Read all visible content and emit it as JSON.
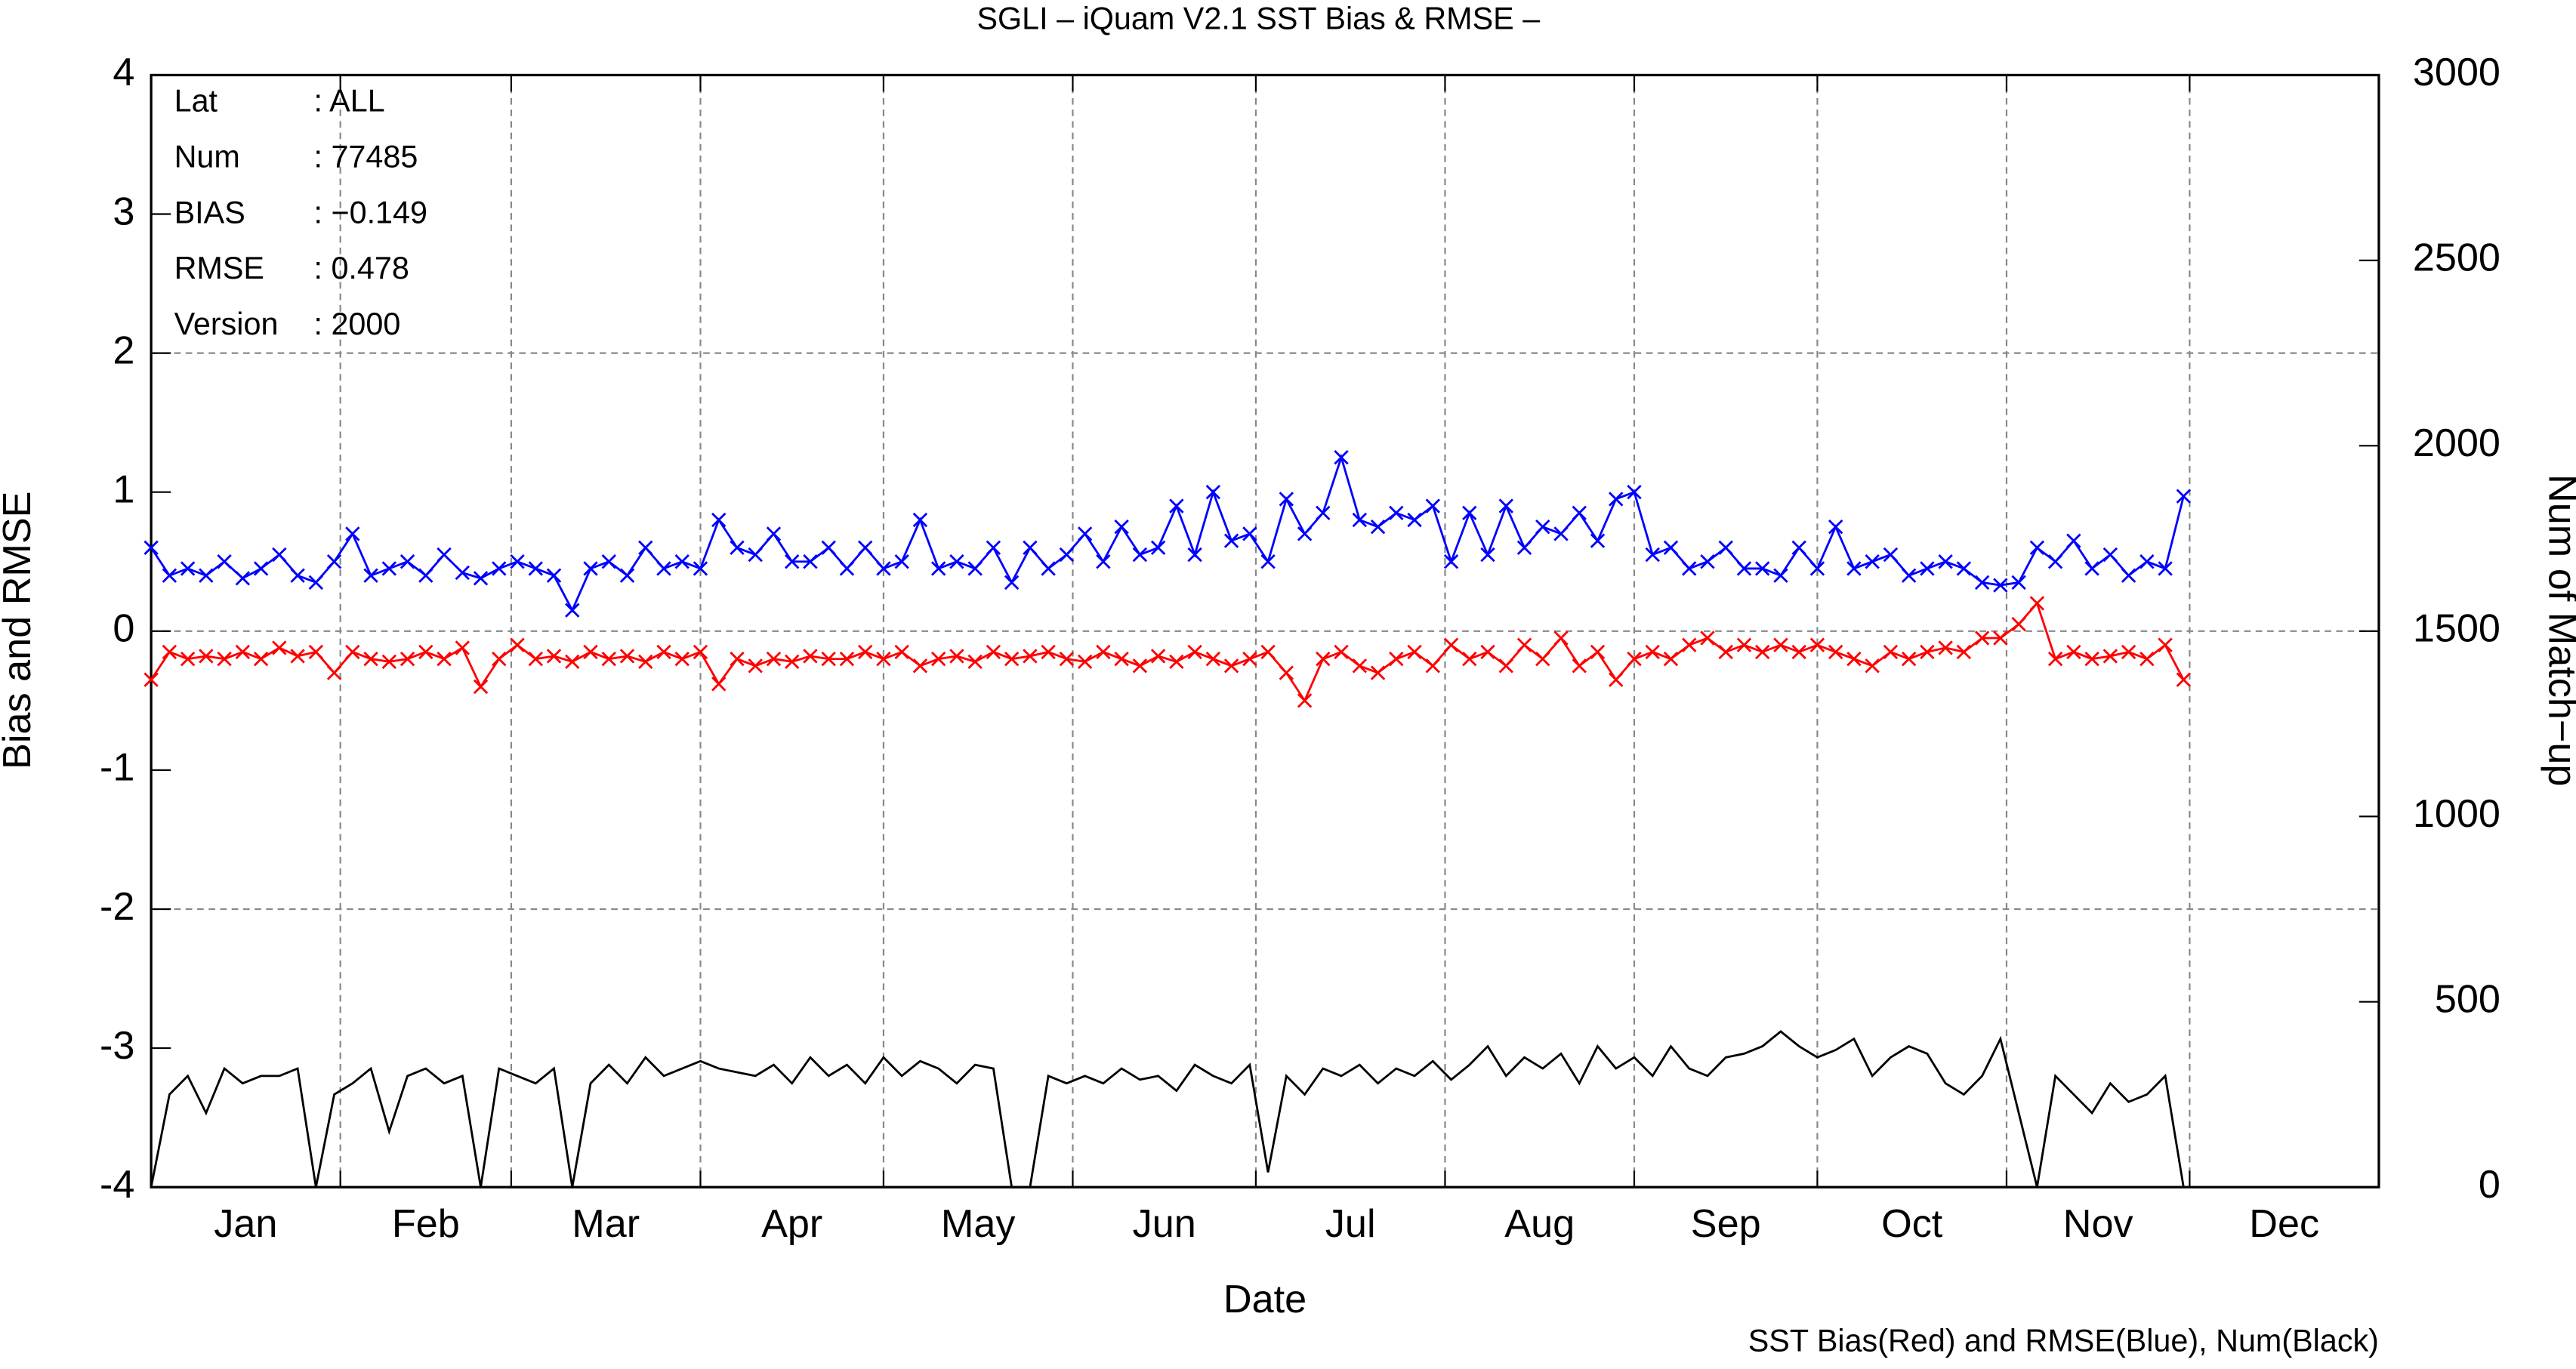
{
  "chart_data": {
    "type": "line",
    "title": "SGLI – iQuam V2.1 SST Bias & RMSE  –",
    "xlabel": "Date",
    "ylabel": "Bias and RMSE",
    "y2label": "Num of Match−up",
    "note": "SST Bias(Red) and RMSE(Blue), Num(Black)",
    "stats": [
      {
        "label": "Lat",
        "value": ": ALL"
      },
      {
        "label": "Num",
        "value": ": 77485"
      },
      {
        "label": "BIAS",
        "value": ": −0.149"
      },
      {
        "label": "RMSE",
        "value": ": 0.478"
      },
      {
        "label": "Version",
        "value": ": 2000"
      }
    ],
    "xlim": [
      0,
      365
    ],
    "xticks": [
      {
        "value": 15.5,
        "label": "Jan"
      },
      {
        "value": 45,
        "label": "Feb"
      },
      {
        "value": 74.5,
        "label": "Mar"
      },
      {
        "value": 105,
        "label": "Apr"
      },
      {
        "value": 135.5,
        "label": "May"
      },
      {
        "value": 166,
        "label": "Jun"
      },
      {
        "value": 196.5,
        "label": "Jul"
      },
      {
        "value": 227.5,
        "label": "Aug"
      },
      {
        "value": 258,
        "label": "Sep"
      },
      {
        "value": 288.5,
        "label": "Oct"
      },
      {
        "value": 319,
        "label": "Nov"
      },
      {
        "value": 349.5,
        "label": "Dec"
      }
    ],
    "xgrid": [
      31,
      59,
      90,
      120,
      151,
      181,
      212,
      243,
      273,
      304,
      334
    ],
    "ylim": [
      -4,
      4
    ],
    "yticks": [
      -4,
      -3,
      -2,
      -1,
      0,
      1,
      2,
      3,
      4
    ],
    "ygrid": [
      -2,
      0,
      2
    ],
    "y2lim": [
      0,
      3000
    ],
    "y2ticks": [
      0,
      500,
      1000,
      1500,
      2000,
      2500,
      3000
    ],
    "grid": true,
    "x": [
      0,
      3,
      6,
      9,
      12,
      15,
      18,
      21,
      24,
      27,
      30,
      33,
      36,
      39,
      42,
      45,
      48,
      51,
      54,
      57,
      60,
      63,
      66,
      69,
      72,
      75,
      78,
      81,
      84,
      87,
      90,
      93,
      96,
      99,
      102,
      105,
      108,
      111,
      114,
      117,
      120,
      123,
      126,
      129,
      132,
      135,
      138,
      141,
      144,
      147,
      150,
      153,
      156,
      159,
      162,
      165,
      168,
      171,
      174,
      177,
      180,
      183,
      186,
      189,
      192,
      195,
      198,
      201,
      204,
      207,
      210,
      213,
      216,
      219,
      222,
      225,
      228,
      231,
      234,
      237,
      240,
      243,
      246,
      249,
      252,
      255,
      258,
      261,
      264,
      267,
      270,
      273,
      276,
      279,
      282,
      285,
      288,
      291,
      294,
      297,
      300,
      303,
      306,
      309,
      312,
      315,
      318,
      321,
      324,
      327,
      330,
      333
    ],
    "series": [
      {
        "name": "RMSE",
        "color": "#0000ff",
        "marker": "x",
        "values": [
          0.6,
          0.4,
          0.45,
          0.4,
          0.5,
          0.38,
          0.45,
          0.55,
          0.4,
          0.35,
          0.5,
          0.7,
          0.4,
          0.45,
          0.5,
          0.4,
          0.55,
          0.42,
          0.38,
          0.45,
          0.5,
          0.45,
          0.4,
          0.15,
          0.45,
          0.5,
          0.4,
          0.6,
          0.45,
          0.5,
          0.45,
          0.8,
          0.6,
          0.55,
          0.7,
          0.5,
          0.5,
          0.6,
          0.45,
          0.6,
          0.45,
          0.5,
          0.8,
          0.45,
          0.5,
          0.45,
          0.6,
          0.35,
          0.6,
          0.45,
          0.55,
          0.7,
          0.5,
          0.75,
          0.55,
          0.6,
          0.9,
          0.55,
          1.0,
          0.65,
          0.7,
          0.5,
          0.95,
          0.7,
          0.85,
          1.25,
          0.8,
          0.75,
          0.85,
          0.8,
          0.9,
          0.5,
          0.85,
          0.55,
          0.9,
          0.6,
          0.75,
          0.7,
          0.85,
          0.65,
          0.95,
          1.0,
          0.55,
          0.6,
          0.45,
          0.5,
          0.6,
          0.45,
          0.45,
          0.4,
          0.6,
          0.45,
          0.75,
          0.45,
          0.5,
          0.55,
          0.4,
          0.45,
          0.5,
          0.45,
          0.35,
          0.33,
          0.35,
          0.6,
          0.5,
          0.65,
          0.45,
          0.55,
          0.4,
          0.5,
          0.45,
          0.97
        ]
      },
      {
        "name": "Bias",
        "color": "#ff0000",
        "marker": "x",
        "values": [
          -0.35,
          -0.15,
          -0.2,
          -0.18,
          -0.2,
          -0.15,
          -0.2,
          -0.12,
          -0.18,
          -0.15,
          -0.3,
          -0.15,
          -0.2,
          -0.22,
          -0.2,
          -0.15,
          -0.2,
          -0.12,
          -0.4,
          -0.2,
          -0.1,
          -0.2,
          -0.18,
          -0.22,
          -0.15,
          -0.2,
          -0.18,
          -0.22,
          -0.15,
          -0.2,
          -0.15,
          -0.38,
          -0.2,
          -0.25,
          -0.2,
          -0.22,
          -0.18,
          -0.2,
          -0.2,
          -0.15,
          -0.2,
          -0.15,
          -0.25,
          -0.2,
          -0.18,
          -0.22,
          -0.15,
          -0.2,
          -0.18,
          -0.15,
          -0.2,
          -0.22,
          -0.15,
          -0.2,
          -0.25,
          -0.18,
          -0.22,
          -0.15,
          -0.2,
          -0.25,
          -0.2,
          -0.15,
          -0.3,
          -0.5,
          -0.2,
          -0.15,
          -0.25,
          -0.3,
          -0.2,
          -0.15,
          -0.25,
          -0.1,
          -0.2,
          -0.15,
          -0.25,
          -0.1,
          -0.2,
          -0.05,
          -0.25,
          -0.15,
          -0.35,
          -0.2,
          -0.15,
          -0.2,
          -0.1,
          -0.05,
          -0.15,
          -0.1,
          -0.15,
          -0.1,
          -0.15,
          -0.1,
          -0.15,
          -0.2,
          -0.25,
          -0.15,
          -0.2,
          -0.15,
          -0.12,
          -0.15,
          -0.05,
          -0.05,
          0.05,
          0.2,
          -0.2,
          -0.15,
          -0.2,
          -0.18,
          -0.15,
          -0.2,
          -0.1,
          -0.35
        ]
      },
      {
        "name": "Num",
        "color": "#000000",
        "marker": null,
        "axis": "y2",
        "values": [
          0,
          250,
          300,
          200,
          320,
          280,
          300,
          300,
          320,
          0,
          250,
          280,
          320,
          150,
          300,
          320,
          280,
          300,
          0,
          320,
          300,
          280,
          320,
          0,
          280,
          330,
          280,
          350,
          300,
          320,
          340,
          320,
          310,
          300,
          330,
          280,
          350,
          300,
          330,
          280,
          350,
          300,
          340,
          320,
          280,
          330,
          320,
          0,
          0,
          300,
          280,
          300,
          280,
          320,
          290,
          300,
          260,
          330,
          300,
          280,
          330,
          40,
          300,
          250,
          320,
          300,
          330,
          280,
          320,
          300,
          340,
          290,
          330,
          380,
          300,
          350,
          320,
          360,
          280,
          380,
          320,
          350,
          300,
          380,
          320,
          300,
          350,
          360,
          380,
          420,
          380,
          350,
          370,
          400,
          300,
          350,
          380,
          360,
          280,
          250,
          300,
          400,
          200,
          0,
          300,
          250,
          200,
          280,
          230,
          250,
          300,
          0
        ]
      }
    ]
  }
}
